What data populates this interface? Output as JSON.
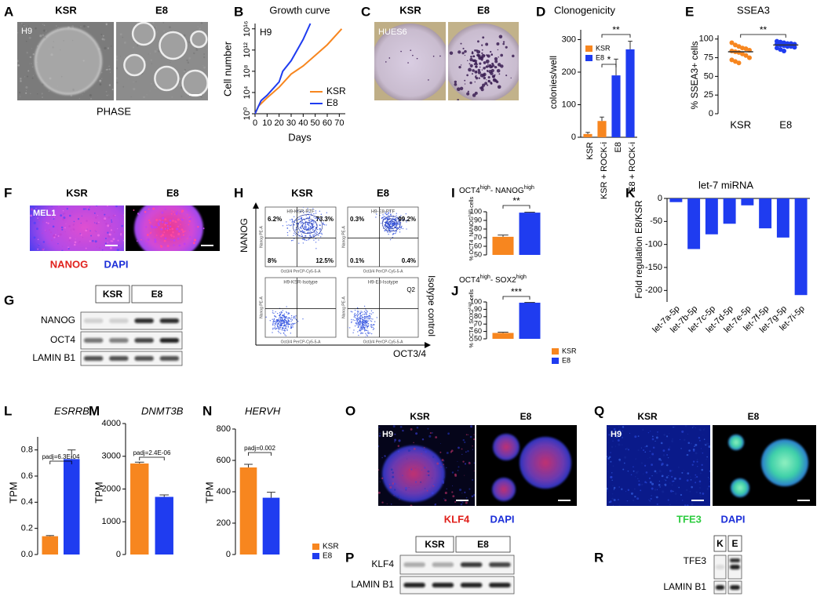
{
  "panels": {
    "A": {
      "label": "A",
      "columns": [
        "KSR",
        "E8"
      ],
      "inset": "H9",
      "caption": "PHASE"
    },
    "B": {
      "label": "B",
      "chart_data": {
        "type": "line",
        "title": "Growth curve",
        "inset": "H9",
        "x_label": "Days",
        "y_label": "Cell number",
        "log_scale_y": true,
        "xlim": [
          0,
          75
        ],
        "xticks": [
          0,
          10,
          20,
          30,
          40,
          50,
          60,
          70
        ],
        "ylim": [
          1,
          1e+17
        ],
        "yticks": [
          {
            "value": 1,
            "label": "10⁰"
          },
          {
            "value": 10000,
            "label": "10⁴"
          },
          {
            "value": 100000000,
            "label": "10⁸"
          },
          {
            "value": 1000000000000.0,
            "label": "10¹²"
          },
          {
            "value": 1e+16,
            "label": "10¹⁶"
          }
        ],
        "legend": "lower right",
        "series": [
          {
            "name": "KSR",
            "color": "#f7861f",
            "x": [
              0,
              3,
              10,
              20,
              30,
              40,
              50,
              60,
              72
            ],
            "values": [
              1,
              30,
              1000,
              100000,
              30000000,
              1000000000,
              100000000000,
              10000000000000.0,
              1e+16
            ]
          },
          {
            "name": "E8",
            "color": "#1f3cf0",
            "x": [
              0,
              5,
              10,
              20,
              23,
              30,
              40,
              46
            ],
            "values": [
              1,
              300,
              3000,
              1000000,
              100000000,
              10000000000,
              100000000000000.0,
              1e+17
            ]
          }
        ]
      }
    },
    "C": {
      "label": "C",
      "columns": [
        "KSR",
        "E8"
      ],
      "inset": "HUES6"
    },
    "D": {
      "label": "D",
      "chart_data": {
        "type": "bar",
        "title": "Clonogenicity",
        "y_label": "colonies/well",
        "categories": [
          "KSR",
          "KSR + ROCK-i",
          "E8",
          "E8 + ROCK-i"
        ],
        "values": [
          10,
          50,
          190,
          270
        ],
        "errors": [
          5,
          12,
          50,
          25
        ],
        "colors": [
          "#f7861f",
          "#f7861f",
          "#1f3cf0",
          "#1f3cf0"
        ],
        "ylim": [
          0,
          330
        ],
        "yticks": [
          0,
          100,
          200,
          300
        ],
        "legend": [
          {
            "name": "KSR",
            "color": "#f7861f"
          },
          {
            "name": "E8",
            "color": "#1f3cf0"
          }
        ],
        "annotations": [
          "*",
          "**"
        ]
      }
    },
    "E": {
      "label": "E",
      "chart_data": {
        "type": "scatter",
        "title": "SSEA3",
        "y_label": "% SSEA3+ cells",
        "categories": [
          "KSR",
          "E8"
        ],
        "groups": [
          {
            "color": "#f7861f",
            "values": [
              95,
              92,
              90,
              88,
              87,
              85,
              84,
              83,
              82,
              80,
              78,
              75,
              72,
              70,
              68
            ]
          },
          {
            "color": "#1f3cf0",
            "values": [
              97,
              96,
              95,
              94,
              94,
              93,
              93,
              92,
              91,
              90,
              90,
              89,
              88,
              86,
              84
            ]
          }
        ],
        "means": [
          83,
          92
        ],
        "ylim": [
          0,
          105
        ],
        "yticks": [
          0,
          25,
          50,
          75,
          100
        ],
        "annotation": "**"
      }
    },
    "F": {
      "label": "F",
      "columns": [
        "KSR",
        "E8"
      ],
      "inset": "MEL1",
      "stains": [
        "NANOG",
        "DAPI"
      ]
    },
    "G": {
      "label": "G",
      "groups": [
        "KSR",
        "E8"
      ],
      "rows": [
        "NANOG",
        "OCT4",
        "LAMIN B1"
      ]
    },
    "H": {
      "label": "H",
      "columns": [
        "KSR",
        "E8"
      ],
      "y_label": "NANOG",
      "x_label": "OCT3/4",
      "row_label": "Isotype control",
      "axis_y": "Nanog PE-A",
      "axis_x": "Oct3/4 PerCP-Cy5-5-A",
      "plots": [
        {
          "title": "H9-KSR-PTF",
          "quadrants": [
            "6.2%",
            "73.3%",
            "8%",
            "12.5%"
          ]
        },
        {
          "title": "H9-E8-PTF",
          "quadrants": [
            "0.3%",
            "99.2%",
            "0.1%",
            "0.4%"
          ]
        },
        {
          "title": "H9-KSR-Isotype",
          "quadrants": []
        },
        {
          "title": "H9-E8-Isotype",
          "quadrants": [
            "Q2"
          ]
        }
      ]
    },
    "I": {
      "label": "I",
      "chart_data": {
        "type": "bar",
        "title": [
          "OCT4",
          "high",
          "- NANOG",
          "high"
        ],
        "y_label": [
          "% OCT4_NANOG",
          "high",
          " cells"
        ],
        "values": [
          71,
          99
        ],
        "errors": [
          2,
          0.5
        ],
        "colors": [
          "#f7861f",
          "#1f3cf0"
        ],
        "ylim": [
          50,
          100
        ],
        "yticks": [
          50,
          60,
          70,
          80,
          90,
          100
        ],
        "annotation": "**"
      }
    },
    "J": {
      "label": "J",
      "chart_data": {
        "type": "bar",
        "title": [
          "OCT4",
          "high",
          "- SOX2",
          "high"
        ],
        "y_label": [
          "% OCT4_SOX2",
          "high",
          " cells"
        ],
        "values": [
          58,
          99
        ],
        "errors": [
          1,
          0.4
        ],
        "colors": [
          "#f7861f",
          "#1f3cf0"
        ],
        "ylim": [
          50,
          100
        ],
        "yticks": [
          50,
          60,
          70,
          80,
          90,
          100
        ],
        "annotation": "***",
        "legend": [
          {
            "name": "KSR",
            "color": "#f7861f"
          },
          {
            "name": "E8",
            "color": "#1f3cf0"
          }
        ]
      }
    },
    "K": {
      "label": "K",
      "chart_data": {
        "type": "bar",
        "title": "let-7 miRNA",
        "y_label": "Fold regulation E8/KSR",
        "categories": [
          "let-7a-5p",
          "let-7b-5p",
          "let-7c-5p",
          "let-7d-5p",
          "let-7e-5p",
          "let-7f-5p",
          "let-7g-5p",
          "let-7i-5p"
        ],
        "values": [
          -8,
          -110,
          -78,
          -55,
          -15,
          -65,
          -85,
          -210
        ],
        "color": "#1f3cf0",
        "ylim": [
          -225,
          0
        ],
        "yticks": [
          0,
          -50,
          -100,
          -150,
          -200
        ]
      }
    },
    "L": {
      "label": "L",
      "chart_data": {
        "type": "bar",
        "title": "ESRRB",
        "y_label": "TPM",
        "values": [
          0.14,
          0.73
        ],
        "errors": [
          0.005,
          0.07
        ],
        "colors": [
          "#f7861f",
          "#1f3cf0"
        ],
        "ylim": [
          0,
          0.9
        ],
        "yticks": [
          {
            "value": 0,
            "label": "0.0"
          },
          0.2,
          0.4,
          0.6,
          0.8
        ],
        "annotation": "padj=6.3E-04"
      }
    },
    "M": {
      "label": "M",
      "chart_data": {
        "type": "bar",
        "title": "DNMT3B",
        "y_label": "TPM",
        "values": [
          2780,
          1760
        ],
        "errors": [
          40,
          60
        ],
        "colors": [
          "#f7861f",
          "#1f3cf0"
        ],
        "ylim": [
          0,
          4000
        ],
        "yticks": [
          0,
          1000,
          2000,
          3000,
          4000
        ],
        "annotation": "padj=2.4E-06"
      }
    },
    "N": {
      "label": "N",
      "chart_data": {
        "type": "bar",
        "title": "HERVH",
        "y_label": "TPM",
        "values": [
          555,
          362
        ],
        "errors": [
          20,
          35
        ],
        "colors": [
          "#f7861f",
          "#1f3cf0"
        ],
        "ylim": [
          0,
          800
        ],
        "yticks": [
          0,
          200,
          400,
          600,
          800
        ],
        "annotation": "padj=0.002",
        "legend": [
          {
            "name": "KSR",
            "color": "#f7861f"
          },
          {
            "name": "E8",
            "color": "#1f3cf0"
          }
        ]
      }
    },
    "O": {
      "label": "O",
      "columns": [
        "KSR",
        "E8"
      ],
      "inset": "H9",
      "stains": [
        "KLF4",
        "DAPI"
      ]
    },
    "P": {
      "label": "P",
      "groups": [
        "KSR",
        "E8"
      ],
      "rows": [
        "KLF4",
        "LAMIN B1"
      ]
    },
    "Q": {
      "label": "Q",
      "columns": [
        "KSR",
        "E8"
      ],
      "inset": "H9",
      "stains": [
        "TFE3",
        "DAPI"
      ]
    },
    "R": {
      "label": "R",
      "groups": [
        "K",
        "E"
      ],
      "rows": [
        "TFE3",
        "LAMIN B1"
      ]
    }
  }
}
